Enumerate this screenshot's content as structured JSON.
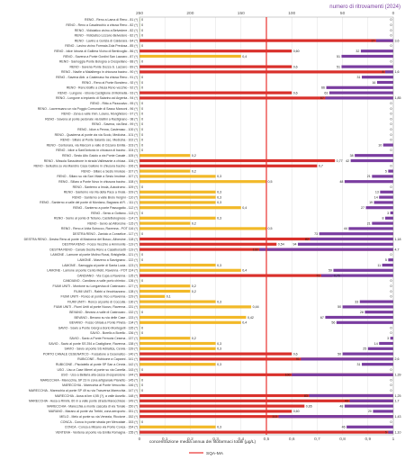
{
  "chart_data": {
    "type": "bar",
    "title": "",
    "xlabel": "concentrazione media annua  dei fitofarmaci totali (μg/L)",
    "ylabel": "",
    "top_axis_label": "numero di ritrovamenti (2024)",
    "conc_ticks": [
      "0",
      "0,1",
      "0,2",
      "0,3",
      "0,4",
      "0,5",
      "0,6",
      "0,7",
      "0,8",
      "0,9",
      "1"
    ],
    "count_ticks": [
      "250",
      "200",
      "150",
      "100",
      "50",
      "0"
    ],
    "sqa_label": "SQA-MA",
    "sqa_value": 0.5,
    "conc_xlim": [
      0,
      1
    ],
    "count_xlim": [
      250,
      0
    ],
    "legend": [
      {
        "name": "SQA-MA",
        "color": "#e8312f"
      }
    ],
    "colors": {
      "yellow_conc": "#f2b928",
      "red_conc": "#d9302b",
      "green_conc": "#8dbb4a",
      "count_bar": "#7a3da0",
      "sqa_line": "#e8312f",
      "axis_text": "#555555"
    },
    "stations": [
      {
        "label": "RENO - Reno a Lama di Reno - 81 (*)",
        "conc": 0.0,
        "conc_label": "0",
        "color": "green",
        "count": 0,
        "count_label": "0"
      },
      {
        "label": "RENO - Reno a Casalecchio a chiusa Reno - 82 (*)",
        "conc": 0.0,
        "conc_label": "0",
        "color": "green",
        "count": 0,
        "count_label": "0"
      },
      {
        "label": "RENO - Vidiciatico vicino a Belvedere - 82 (*)",
        "conc": 0.0,
        "conc_label": "0",
        "color": "green",
        "count": 0,
        "count_label": "0"
      },
      {
        "label": "RENO - Vidiciatico Lizzano Belvedere - 82 (*)",
        "conc": 0.0,
        "conc_label": "0",
        "color": "green",
        "count": 0,
        "count_label": "0"
      },
      {
        "label": "RENO - Lavino a Gorizia di Calderara - 84 (*)",
        "conc": 3.6,
        "conc_label": "3,6",
        "color": "red",
        "count": 17,
        "count_label": "17"
      },
      {
        "label": "RENO - Lavino vicino Formaia Zola Predosa - 85 (*)",
        "conc": 0.0,
        "conc_label": "0",
        "color": "green",
        "count": 0,
        "count_label": "0"
      },
      {
        "label": "RENO - Idice Idrovia di Galliera Vicino di Bentivoglio - 86 (*)",
        "conc": 0.6,
        "conc_label": "0,60",
        "color": "red",
        "count": 32,
        "count_label": "32"
      },
      {
        "label": "RENO - Savena a Ponte Gordini San Lazzaro - 87 (*)",
        "conc": 0.4,
        "conc_label": "0,4",
        "color": "yellow",
        "count": 51,
        "count_label": "51"
      },
      {
        "label": "RENO - Samoggia Ponte Bologna a Crespellano - 88 (*)",
        "conc": 0.0,
        "conc_label": "0",
        "color": "green",
        "count": 0,
        "count_label": "0"
      },
      {
        "label": "RENO - Savena Ponte Dozza S. Lazzaro - 89 (*)",
        "conc": 0.6,
        "conc_label": "0,6",
        "color": "red",
        "count": 51,
        "count_label": "51"
      },
      {
        "label": "RENO - Navile a Malalbergo in chiusura bacino - 90 (*)",
        "conc": 1.6,
        "conc_label": "1,6",
        "color": "red",
        "count": 8,
        "count_label": "8"
      },
      {
        "label": "RENO - Savena Abb. a Castenaso fra chiusa Reno - 91 (*)",
        "conc": 0.0,
        "conc_label": "0",
        "color": "green",
        "count": 31,
        "count_label": "31"
      },
      {
        "label": "RENO - Reno al Ponte Bondeno - 92 (*)",
        "conc": 0.0,
        "conc_label": "0",
        "color": "green",
        "count": 16,
        "count_label": "16"
      },
      {
        "label": "RENO - Reno Bolfio a chiusa Reno vecchio - 92 (*)",
        "conc": 0.0,
        "conc_label": "0",
        "color": "green",
        "count": 66,
        "count_label": "66"
      },
      {
        "label": "RENO - Lungone - idrovia Castiglione di Molinella - 93 (*)",
        "conc": 0.6,
        "conc_label": "0,6",
        "color": "red",
        "count": 63,
        "count_label": "63"
      },
      {
        "label": "RENO - Lungone a impianto di Saiarino ad Argenta - 94 (*)",
        "conc": 1.85,
        "conc_label": "1,85",
        "color": "red",
        "count": 67,
        "count_label": "67"
      },
      {
        "label": "RENO - Ritto a Pizzocalvo - 95 (*)",
        "conc": 0.0,
        "conc_label": "0",
        "color": "green",
        "count": 0,
        "count_label": "0"
      },
      {
        "label": "RENO - Lacremuano un via Poggio Comunale di Sasso Marconi - 96 (*)",
        "conc": 0.0,
        "conc_label": "0",
        "color": "green",
        "count": 0,
        "count_label": "0"
      },
      {
        "label": "RENO - Zena a valle Imm. Loiano, Monghidoro - 97 (*)",
        "conc": 0.0,
        "conc_label": "0",
        "color": "green",
        "count": 0,
        "count_label": "0"
      },
      {
        "label": "RENO - Savena al ponte pedonale via Bellini a Rastignano - 98 (*)",
        "conc": 0.0,
        "conc_label": "0",
        "color": "green",
        "count": 0,
        "count_label": "0"
      },
      {
        "label": "RENO - Savena, via Beci - 99 (*)",
        "conc": 0.0,
        "conc_label": "0",
        "color": "green",
        "count": 0,
        "count_label": "0"
      },
      {
        "label": "RENO - Idice a Penna, Castenaso - 100 (*)",
        "conc": 0.0,
        "conc_label": "0",
        "color": "green",
        "count": 0,
        "count_label": "0"
      },
      {
        "label": "RENO - Quaderna al ponte via via Scolo, Medicina - 101 (*)",
        "conc": 0.0,
        "conc_label": "0",
        "color": "green",
        "count": 0,
        "count_label": "0"
      },
      {
        "label": "RENO - Sillaro al Ponte Saiardo sec. Medicina - 102 (*)",
        "conc": 0.0,
        "conc_label": "0",
        "color": "green",
        "count": 0,
        "count_label": "0"
      },
      {
        "label": "RENO - Centonara, via Marconi a valle di Ozzano Emilia - 103 (*)",
        "conc": 0.0,
        "conc_label": "0",
        "color": "green",
        "count": 10,
        "count_label": "10"
      },
      {
        "label": "RENO - Idice a Sant'Antonio in chiusura di bacino - 104 (*)",
        "conc": 0.0,
        "conc_label": "0",
        "color": "green",
        "count": 0,
        "count_label": "0"
      },
      {
        "label": "RENO - Sesto Alto Gaiolo a via Ponte Casale - 105 (*)",
        "conc": 0.2,
        "conc_label": "0,2",
        "color": "yellow",
        "count": 38,
        "count_label": "38"
      },
      {
        "label": "RENO - Missola Sassoleone in strada Valliesante a chiusa - 106 (*)",
        "conc": 0.77,
        "conc_label": "0,77",
        "color": "red",
        "count": 42,
        "count_label": "42"
      },
      {
        "label": "RENO - Sellustra su via Mandrio Casa Gallone in chiusura bacino - 106 (*)",
        "conc": 0.7,
        "conc_label": "0,7",
        "color": "red",
        "count": 0,
        "count_label": "0"
      },
      {
        "label": "RENO - Sillaro a Sesto Imolese - 107 (*)",
        "conc": 0.2,
        "conc_label": "0,2",
        "color": "yellow",
        "count": 5,
        "count_label": "5"
      },
      {
        "label": "RENO - Sillaro su via San Vitale a Sesto Imolese - 107 (*)",
        "conc": 0.3,
        "conc_label": "0,3",
        "color": "yellow",
        "count": 21,
        "count_label": "21"
      },
      {
        "label": "RENO - Sillaro a Ponte Novo in chiusura bacino - 108 (*)",
        "conc": 0.5,
        "conc_label": "0,5",
        "color": "yellow",
        "count": 48,
        "count_label": "48"
      },
      {
        "label": "RENO - Santerno a Imola, Autodromo - 109 (*)",
        "conc": 0.0,
        "conc_label": "0",
        "color": "green",
        "count": 0,
        "count_label": "0"
      },
      {
        "label": "RENO - Santerno via Via della Pace a Imola - 109 (*)",
        "conc": 0.3,
        "conc_label": "0,3",
        "color": "yellow",
        "count": 13,
        "count_label": "13"
      },
      {
        "label": "RENO - Santerno a valle Brolo Vergini - 110 (*)",
        "conc": 0.3,
        "conc_label": "0,3",
        "color": "yellow",
        "count": 14,
        "count_label": "14"
      },
      {
        "label": "RENO - Santerno a valle del ponte di Mordano, Bagnara di R. - 111 (*)",
        "conc": 0.3,
        "conc_label": "0,3",
        "color": "yellow",
        "count": 19,
        "count_label": "19"
      },
      {
        "label": "RENO - Santerno a ponte Passogatto - 112 (*)",
        "conc": 0.4,
        "conc_label": "0,4",
        "color": "yellow",
        "count": 27,
        "count_label": "27"
      },
      {
        "label": "RENO - Senio a Gottano - 113 (*)",
        "conc": 0.0,
        "conc_label": "0",
        "color": "green",
        "count": 3,
        "count_label": "3"
      },
      {
        "label": "RENO - Senio al ponte di Tebano, Castelbolognese - 114 (*)",
        "conc": 0.3,
        "conc_label": "0,3",
        "color": "yellow",
        "count": 8,
        "count_label": "8"
      },
      {
        "label": "RENO - Senio ad Alfonsine - 115 (*)",
        "conc": 0.2,
        "conc_label": "0,2",
        "color": "yellow",
        "count": 21,
        "count_label": "21"
      },
      {
        "label": "RENO - Reno a Volta Scirocco, Ravenna - POT 116 (*)",
        "conc": 0.5,
        "conc_label": "0,5",
        "color": "yellow",
        "count": 44,
        "count_label": "44"
      },
      {
        "label": "DESTRA RENO - Zaniolo a Conselice - 117 (*)",
        "conc": 0.0,
        "conc_label": "0",
        "color": "green",
        "count": 73,
        "count_label": "73"
      },
      {
        "label": "DESTRA RENO - Destra Reno al ponte di Madonna del Bosco, Alfonsine - 118 (*)",
        "conc": 1.18,
        "conc_label": "1,18",
        "color": "red",
        "count": 82,
        "count_label": "82"
      },
      {
        "label": "DESTRA RENO - Fosso Vecchio a Ammonite - 119 (*)",
        "conc": 0.54,
        "conc_label": "0,54",
        "color": "red",
        "count": 94,
        "count_label": "94"
      },
      {
        "label": "DESTRA RENO - Canale Destra Reno a Casalborsetti - 119 (*)",
        "conc": 4.7,
        "conc_label": "4,7",
        "color": "red",
        "count": 132,
        "count_label": "132"
      },
      {
        "label": "LAMONE - Lamone al ponte Molino Rossi, Brisighella - 121 (*)",
        "conc": 0.0,
        "conc_label": "0",
        "color": "green",
        "count": 0,
        "count_label": "0"
      },
      {
        "label": "LAMONE - Marzeno a Sarzignano - 122 (*)",
        "conc": 0.0,
        "conc_label": "0",
        "color": "green",
        "count": 5,
        "count_label": "5"
      },
      {
        "label": "LAMONE - Samoggia al ponte di Santa Lucia - 123 (*)",
        "conc": 0.3,
        "conc_label": "0,3",
        "color": "yellow",
        "count": 11,
        "count_label": "11"
      },
      {
        "label": "LAMONE - Lamone al ponte Cento Metri, Ravenna - POT 124 (*)",
        "conc": 0.4,
        "conc_label": "0,4",
        "color": "yellow",
        "count": 59,
        "count_label": "59"
      },
      {
        "label": "CANDIANO - Via Cupa a Ravenna - 125 (*)",
        "conc": 0.76,
        "conc_label": "0,76",
        "color": "red",
        "count": 71,
        "count_label": "71"
      },
      {
        "label": "CANDIANO - Candiano a valle porto chimico - 126 (*)",
        "conc": 0.0,
        "conc_label": "0",
        "color": "green",
        "count": 0,
        "count_label": "0"
      },
      {
        "label": "FIUMI UNITI - Montone su Longarvisa di Castrocaro - 127 (*)",
        "conc": 0.2,
        "conc_label": "0,2",
        "color": "yellow",
        "count": 0,
        "count_label": "0"
      },
      {
        "label": "FIUMI UNITI - Rabbi a Vecchiazzano - 128 (*)",
        "conc": 0.2,
        "conc_label": "0,2",
        "color": "yellow",
        "count": 0,
        "count_label": "0"
      },
      {
        "label": "FIUMI UNITI - Ronco al ponte Vico a Ravenna - 129 (*)",
        "conc": 0.1,
        "conc_label": "0,1",
        "color": "yellow",
        "count": 0,
        "count_label": "0"
      },
      {
        "label": "FIUMI UNITI - Ronco al ponte di Coccolia - 130 (*)",
        "conc": 0.3,
        "conc_label": "0,3",
        "color": "yellow",
        "count": 33,
        "count_label": "33"
      },
      {
        "label": "FIUMI UNITI - Fiumi Uniti al ponte Nuovo, Ravenna - 131 (*)",
        "conc": 0.44,
        "conc_label": "0,44",
        "color": "yellow",
        "count": 50,
        "count_label": "50"
      },
      {
        "label": "BEVANO - Bevano a valle di Castrocaro - 132 (*)",
        "conc": 0.0,
        "conc_label": "0",
        "color": "green",
        "count": 28,
        "count_label": "28"
      },
      {
        "label": "BEVANO - Bevano su via delle Case - 133 (*)",
        "conc": 0.42,
        "conc_label": "0,42",
        "color": "yellow",
        "count": 67,
        "count_label": "67"
      },
      {
        "label": "BEVANO - Fosso Ghiaia a Ponte Pineta - 134 (*)",
        "conc": 0.4,
        "conc_label": "0,4",
        "color": "yellow",
        "count": 56,
        "count_label": "56"
      },
      {
        "label": "SAVIO - Savio a Ponte Giorgi a Borlo Montegelli - 135 (*)",
        "conc": 0.0,
        "conc_label": "0",
        "color": "green",
        "count": 0,
        "count_label": "0"
      },
      {
        "label": "SAVIO - Borello a Borello - 136 (*)",
        "conc": 0.0,
        "conc_label": "0",
        "color": "green",
        "count": 0,
        "count_label": "0"
      },
      {
        "label": "SAVIO - Savio a Ponte Ferrovia Cesena - 137 (*)",
        "conc": 0.2,
        "conc_label": "0,2",
        "color": "yellow",
        "count": 3,
        "count_label": "3"
      },
      {
        "label": "SAVIO - Savio al ponte SS 254 a Castiglione, Ravenna - 138 (*)",
        "conc": 0.3,
        "conc_label": "0,3",
        "color": "yellow",
        "count": 14,
        "count_label": "14"
      },
      {
        "label": "SAVIO - Savio al ponte SS Adriatica, Cervia - 139 (*)",
        "conc": 0.3,
        "conc_label": "0,3",
        "color": "yellow",
        "count": 25,
        "count_label": "25"
      },
      {
        "label": "PORTO CANALE CESENATICO - Fossatone a Cesenatico - 140 (*)",
        "conc": 0.6,
        "conc_label": "0,6",
        "color": "red",
        "count": 50,
        "count_label": "50"
      },
      {
        "label": "RUBICONE - Rubicone a Capanni - 141 (*)",
        "conc": 2.6,
        "conc_label": "2,6",
        "color": "red",
        "count": 91,
        "count_label": "91"
      },
      {
        "label": "RUBICONE - Pisciatello al ponte SP San a Cervia - 142 (*)",
        "conc": 0.3,
        "conc_label": "0,3",
        "color": "yellow",
        "count": 31,
        "count_label": "31"
      },
      {
        "label": "USO - Uso a Case Mierei al ponte su via Canella - 143 (*)",
        "conc": 0.0,
        "conc_label": "0",
        "color": "green",
        "count": 0,
        "count_label": "0"
      },
      {
        "label": "USO - Uso a Bellaria alla cassa di espansione - 144 (*)",
        "conc": 1.39,
        "conc_label": "1,39",
        "color": "red",
        "count": 100,
        "count_label": "100"
      },
      {
        "label": "MARECCHIA - Marecchia, SP 23 in zona artigianale Pianetto - 145 (*)",
        "conc": 0.0,
        "conc_label": "0",
        "color": "green",
        "count": 0,
        "count_label": "0"
      },
      {
        "label": "MARECCHIA - Marecchia al Ponte Verucchio - 146 (*)",
        "conc": 0.0,
        "conc_label": "0",
        "color": "green",
        "count": 0,
        "count_label": "0"
      },
      {
        "label": "MARECCHIA - Marecchia al ponte SP 49 su via Trasversa Marecchia - 147 (*)",
        "conc": 0.0,
        "conc_label": "0",
        "color": "green",
        "count": 0,
        "count_label": "0"
      },
      {
        "label": "MARECCHIA - Ausa al km 4,55 (?), a valle Ausello - 148 (*)",
        "conc": 1.25,
        "conc_label": "1,25",
        "color": "red",
        "count": 83,
        "count_label": "83"
      },
      {
        "label": "MARECCHIA - Ausa a Rimini, 60 m a valle ponte strada Marecchiese - 149 (*)",
        "conc": 1.7,
        "conc_label": "1,7",
        "color": "red",
        "count": 43,
        "count_label": "43"
      },
      {
        "label": "MARECCHIA - Marecchia a monte cascata di via Tonale - 150 (*)",
        "conc": 0.65,
        "conc_label": "0,65",
        "color": "red",
        "count": 48,
        "count_label": "48"
      },
      {
        "label": "MARANO - Marano al ponte via Trebbi, zona aeroporto - 151 (*)",
        "conc": 0.6,
        "conc_label": "0,60",
        "color": "red",
        "count": 20,
        "count_label": "20"
      },
      {
        "label": "MELO - Melo al ponte su via Venezia, Riccione - 152 (*)",
        "conc": 1.43,
        "conc_label": "1,43",
        "color": "red",
        "count": 113,
        "count_label": "113"
      },
      {
        "label": "CONCA - Conca in ponte strada per Mercatale - 153 (*)",
        "conc": 0.0,
        "conc_label": "0",
        "color": "green",
        "count": 0,
        "count_label": "0"
      },
      {
        "label": "CONCA - Conca a Misano via Ponte Conca - 154 (*)",
        "conc": 0.3,
        "conc_label": "0,3",
        "color": "yellow",
        "count": 46,
        "count_label": "46"
      },
      {
        "label": "VENTENA - Ventena al ponte via Emilia Romagna - 155 (*)",
        "conc": 1.1,
        "conc_label": "1,10",
        "color": "red",
        "count": 5,
        "count_label": "5"
      }
    ]
  }
}
